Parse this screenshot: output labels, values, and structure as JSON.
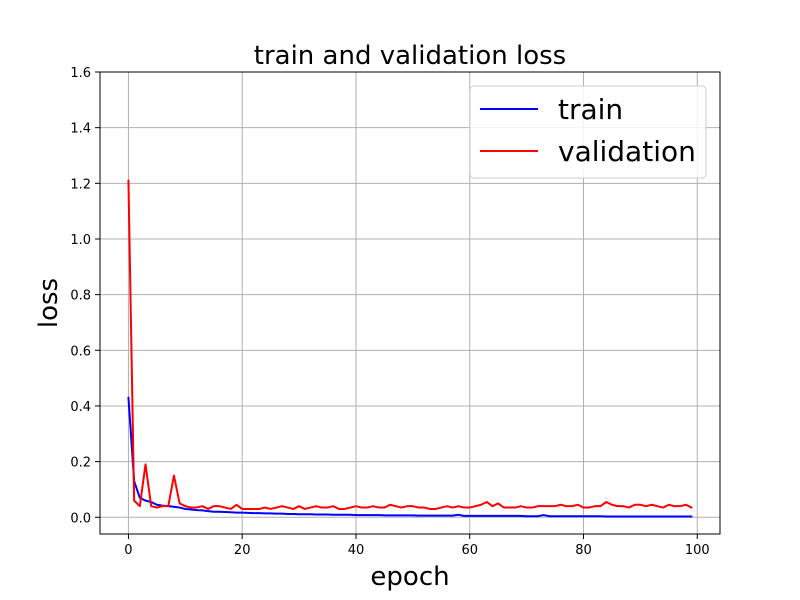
{
  "chart_data": {
    "type": "line",
    "title": "train and validation loss",
    "xlabel": "epoch",
    "ylabel": "loss",
    "xlim": [
      -5,
      104
    ],
    "ylim": [
      -0.06,
      1.6
    ],
    "xticks": [
      0,
      20,
      40,
      60,
      80,
      100
    ],
    "yticks": [
      0.0,
      0.2,
      0.4,
      0.6,
      0.8,
      1.0,
      1.2,
      1.4,
      1.6
    ],
    "xtick_labels": [
      "0",
      "20",
      "40",
      "60",
      "80",
      "100"
    ],
    "ytick_labels": [
      "0.0",
      "0.2",
      "0.4",
      "0.6",
      "0.8",
      "1.0",
      "1.2",
      "1.4",
      "1.6"
    ],
    "grid": true,
    "legend_position": "top-right",
    "series": [
      {
        "name": "train",
        "color": "#0000ff",
        "values": [
          0.43,
          0.13,
          0.07,
          0.06,
          0.055,
          0.045,
          0.042,
          0.04,
          0.038,
          0.035,
          0.03,
          0.028,
          0.026,
          0.025,
          0.022,
          0.02,
          0.02,
          0.019,
          0.018,
          0.017,
          0.017,
          0.016,
          0.015,
          0.015,
          0.014,
          0.014,
          0.013,
          0.013,
          0.012,
          0.012,
          0.011,
          0.011,
          0.011,
          0.01,
          0.01,
          0.01,
          0.009,
          0.009,
          0.009,
          0.009,
          0.008,
          0.008,
          0.008,
          0.008,
          0.008,
          0.007,
          0.007,
          0.007,
          0.007,
          0.007,
          0.007,
          0.006,
          0.006,
          0.006,
          0.006,
          0.006,
          0.006,
          0.006,
          0.009,
          0.005,
          0.005,
          0.005,
          0.005,
          0.005,
          0.005,
          0.005,
          0.005,
          0.005,
          0.005,
          0.005,
          0.004,
          0.004,
          0.004,
          0.008,
          0.004,
          0.004,
          0.004,
          0.004,
          0.004,
          0.004,
          0.004,
          0.004,
          0.004,
          0.004,
          0.003,
          0.003,
          0.003,
          0.003,
          0.003,
          0.003,
          0.003,
          0.003,
          0.003,
          0.003,
          0.003,
          0.003,
          0.003,
          0.003,
          0.003,
          0.003
        ]
      },
      {
        "name": "validation",
        "color": "#ff0000",
        "values": [
          1.21,
          0.06,
          0.04,
          0.19,
          0.04,
          0.035,
          0.04,
          0.04,
          0.15,
          0.05,
          0.04,
          0.035,
          0.035,
          0.04,
          0.03,
          0.04,
          0.04,
          0.035,
          0.03,
          0.045,
          0.03,
          0.03,
          0.03,
          0.03,
          0.035,
          0.03,
          0.035,
          0.04,
          0.035,
          0.03,
          0.04,
          0.03,
          0.035,
          0.04,
          0.035,
          0.035,
          0.04,
          0.03,
          0.03,
          0.035,
          0.04,
          0.035,
          0.035,
          0.04,
          0.035,
          0.035,
          0.045,
          0.04,
          0.035,
          0.04,
          0.04,
          0.035,
          0.035,
          0.03,
          0.03,
          0.035,
          0.04,
          0.035,
          0.04,
          0.035,
          0.035,
          0.04,
          0.045,
          0.055,
          0.04,
          0.05,
          0.035,
          0.035,
          0.035,
          0.04,
          0.035,
          0.035,
          0.04,
          0.04,
          0.04,
          0.04,
          0.045,
          0.04,
          0.04,
          0.045,
          0.035,
          0.035,
          0.04,
          0.04,
          0.055,
          0.045,
          0.04,
          0.04,
          0.035,
          0.045,
          0.045,
          0.04,
          0.045,
          0.04,
          0.035,
          0.045,
          0.04,
          0.04,
          0.045,
          0.035
        ]
      }
    ]
  }
}
